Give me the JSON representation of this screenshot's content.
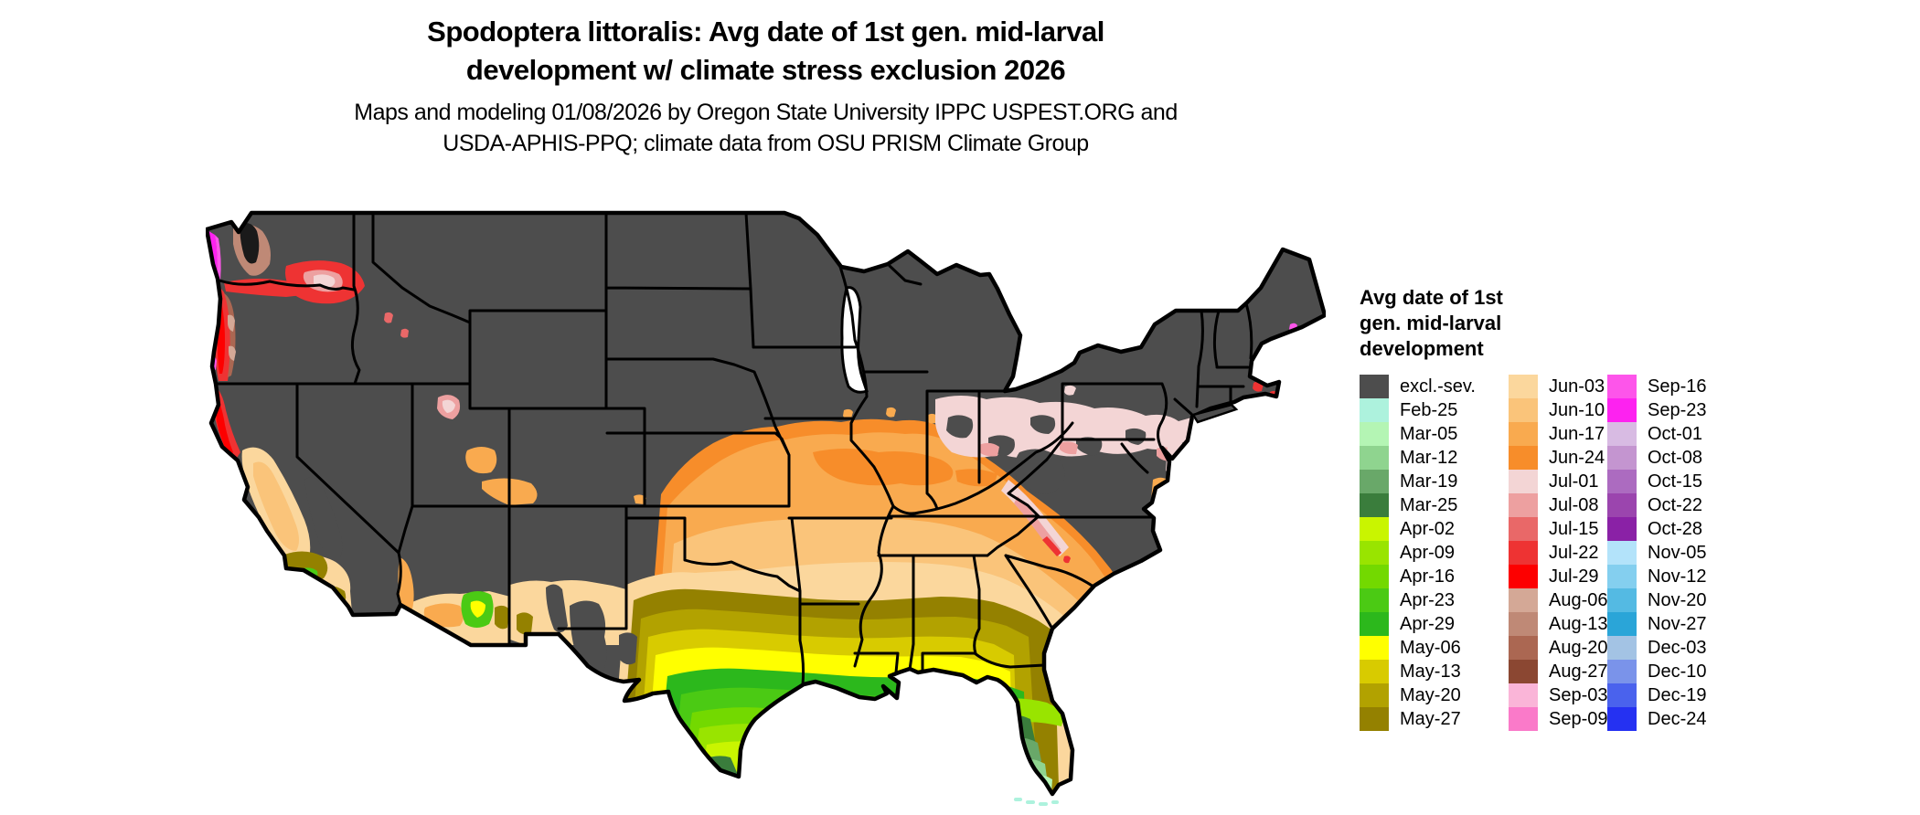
{
  "title": {
    "line1": "Spodoptera littoralis: Avg date of 1st gen. mid-larval",
    "line2": "development w/ climate stress exclusion 2026"
  },
  "subtitle": {
    "line1": "Maps and modeling 01/08/2026 by Oregon State University IPPC USPEST.ORG and",
    "line2": "USDA-APHIS-PPQ; climate data from OSU PRISM Climate Group"
  },
  "legend": {
    "title_line1": "Avg date of 1st",
    "title_line2": "gen. mid-larval",
    "title_line3": "development",
    "columns": [
      [
        {
          "label": "excl.-sev.",
          "color": "#4d4d4d"
        },
        {
          "label": "Feb-25",
          "color": "#adf2dd"
        },
        {
          "label": "Mar-05",
          "color": "#b4f5b4"
        },
        {
          "label": "Mar-12",
          "color": "#8fd48f"
        },
        {
          "label": "Mar-19",
          "color": "#69a869"
        },
        {
          "label": "Mar-25",
          "color": "#3a7d3c"
        },
        {
          "label": "Apr-02",
          "color": "#c9f500"
        },
        {
          "label": "Apr-09",
          "color": "#99e400"
        },
        {
          "label": "Apr-16",
          "color": "#73d900"
        },
        {
          "label": "Apr-23",
          "color": "#4bca14"
        },
        {
          "label": "Apr-29",
          "color": "#2cb81c"
        },
        {
          "label": "May-06",
          "color": "#ffff00"
        },
        {
          "label": "May-13",
          "color": "#d8cb00"
        },
        {
          "label": "May-20",
          "color": "#b2a200"
        },
        {
          "label": "May-27",
          "color": "#948100"
        }
      ],
      [
        {
          "label": "Jun-03",
          "color": "#fbd79d"
        },
        {
          "label": "Jun-10",
          "color": "#fac47a"
        },
        {
          "label": "Jun-17",
          "color": "#f9aa4f"
        },
        {
          "label": "Jun-24",
          "color": "#f78d2a"
        },
        {
          "label": "Jul-01",
          "color": "#f3d5d5"
        },
        {
          "label": "Jul-08",
          "color": "#eda0a0"
        },
        {
          "label": "Jul-15",
          "color": "#e96868"
        },
        {
          "label": "Jul-22",
          "color": "#ee3333"
        },
        {
          "label": "Jul-29",
          "color": "#fd0000"
        },
        {
          "label": "Aug-06",
          "color": "#d4a896"
        },
        {
          "label": "Aug-13",
          "color": "#bf8976"
        },
        {
          "label": "Aug-20",
          "color": "#ab6752"
        },
        {
          "label": "Aug-27",
          "color": "#8b4732"
        },
        {
          "label": "Sep-03",
          "color": "#fab5d8"
        },
        {
          "label": "Sep-09",
          "color": "#fa7ac9"
        }
      ],
      [
        {
          "label": "Sep-16",
          "color": "#fd55ea"
        },
        {
          "label": "Sep-23",
          "color": "#fd22f0"
        },
        {
          "label": "Oct-01",
          "color": "#d8bbe3"
        },
        {
          "label": "Oct-08",
          "color": "#c495d0"
        },
        {
          "label": "Oct-15",
          "color": "#ac6bc0"
        },
        {
          "label": "Oct-22",
          "color": "#9b45ae"
        },
        {
          "label": "Oct-28",
          "color": "#8a21a6"
        },
        {
          "label": "Nov-05",
          "color": "#b3e3fa"
        },
        {
          "label": "Nov-12",
          "color": "#84cfef"
        },
        {
          "label": "Nov-20",
          "color": "#54bae3"
        },
        {
          "label": "Nov-27",
          "color": "#2aa5d8"
        },
        {
          "label": "Dec-03",
          "color": "#a3c3e4"
        },
        {
          "label": "Dec-10",
          "color": "#7a93ea"
        },
        {
          "label": "Dec-19",
          "color": "#4a62ed"
        },
        {
          "label": "Dec-24",
          "color": "#2531f2"
        }
      ]
    ]
  },
  "chart_data": {
    "type": "choropleth",
    "map_region": "contiguous United States with state boundaries",
    "title": "Spodoptera littoralis: Avg date of 1st gen. mid-larval development w/ climate stress exclusion 2026",
    "legend_title": "Avg date of 1st gen. mid-larval development",
    "legend_position": "right",
    "classes": [
      {
        "label": "excl.-sev.",
        "color": "#4d4d4d"
      },
      {
        "label": "Feb-25",
        "color": "#adf2dd"
      },
      {
        "label": "Mar-05",
        "color": "#b4f5b4"
      },
      {
        "label": "Mar-12",
        "color": "#8fd48f"
      },
      {
        "label": "Mar-19",
        "color": "#69a869"
      },
      {
        "label": "Mar-25",
        "color": "#3a7d3c"
      },
      {
        "label": "Apr-02",
        "color": "#c9f500"
      },
      {
        "label": "Apr-09",
        "color": "#99e400"
      },
      {
        "label": "Apr-16",
        "color": "#73d900"
      },
      {
        "label": "Apr-23",
        "color": "#4bca14"
      },
      {
        "label": "Apr-29",
        "color": "#2cb81c"
      },
      {
        "label": "May-06",
        "color": "#ffff00"
      },
      {
        "label": "May-13",
        "color": "#d8cb00"
      },
      {
        "label": "May-20",
        "color": "#b2a200"
      },
      {
        "label": "May-27",
        "color": "#948100"
      },
      {
        "label": "Jun-03",
        "color": "#fbd79d"
      },
      {
        "label": "Jun-10",
        "color": "#fac47a"
      },
      {
        "label": "Jun-17",
        "color": "#f9aa4f"
      },
      {
        "label": "Jun-24",
        "color": "#f78d2a"
      },
      {
        "label": "Jul-01",
        "color": "#f3d5d5"
      },
      {
        "label": "Jul-08",
        "color": "#eda0a0"
      },
      {
        "label": "Jul-15",
        "color": "#e96868"
      },
      {
        "label": "Jul-22",
        "color": "#ee3333"
      },
      {
        "label": "Jul-29",
        "color": "#fd0000"
      },
      {
        "label": "Aug-06",
        "color": "#d4a896"
      },
      {
        "label": "Aug-13",
        "color": "#bf8976"
      },
      {
        "label": "Aug-20",
        "color": "#ab6752"
      },
      {
        "label": "Aug-27",
        "color": "#8b4732"
      },
      {
        "label": "Sep-03",
        "color": "#fab5d8"
      },
      {
        "label": "Sep-09",
        "color": "#fa7ac9"
      },
      {
        "label": "Sep-16",
        "color": "#fd55ea"
      },
      {
        "label": "Sep-23",
        "color": "#fd22f0"
      },
      {
        "label": "Oct-01",
        "color": "#d8bbe3"
      },
      {
        "label": "Oct-08",
        "color": "#c495d0"
      },
      {
        "label": "Oct-15",
        "color": "#ac6bc0"
      },
      {
        "label": "Oct-22",
        "color": "#9b45ae"
      },
      {
        "label": "Oct-28",
        "color": "#8a21a6"
      },
      {
        "label": "Nov-05",
        "color": "#b3e3fa"
      },
      {
        "label": "Nov-12",
        "color": "#84cfef"
      },
      {
        "label": "Nov-20",
        "color": "#54bae3"
      },
      {
        "label": "Nov-27",
        "color": "#2aa5d8"
      },
      {
        "label": "Dec-03",
        "color": "#a3c3e4"
      },
      {
        "label": "Dec-10",
        "color": "#7a93ea"
      },
      {
        "label": "Dec-19",
        "color": "#4a62ed"
      },
      {
        "label": "Dec-24",
        "color": "#2531f2"
      }
    ],
    "regional_pattern_summary": {
      "northern_interior_states": "excl.-sev.",
      "midwest_band_KS_MO_IL_IN_OH_KY": "Jun-17 to Jun-24",
      "OK_AR_TN_NC_band": "Jun-03 to Jun-10",
      "north_TX_MS_AL_GA_SC_band": "May-13 to May-27",
      "gulf_coast_and_south_TX": "Apr-02 to May-06",
      "south_florida": "Feb-25 to Mar-25",
      "pacific_coast_WA_OR_N_CA": "Jul-15 to Sep-23 with Aug browns",
      "california_central_valley": "Jun-03 to Jun-10",
      "northeast_OH_PA_NJ_coastal_NE": "Jul-01 to Jul-29 patches"
    }
  }
}
